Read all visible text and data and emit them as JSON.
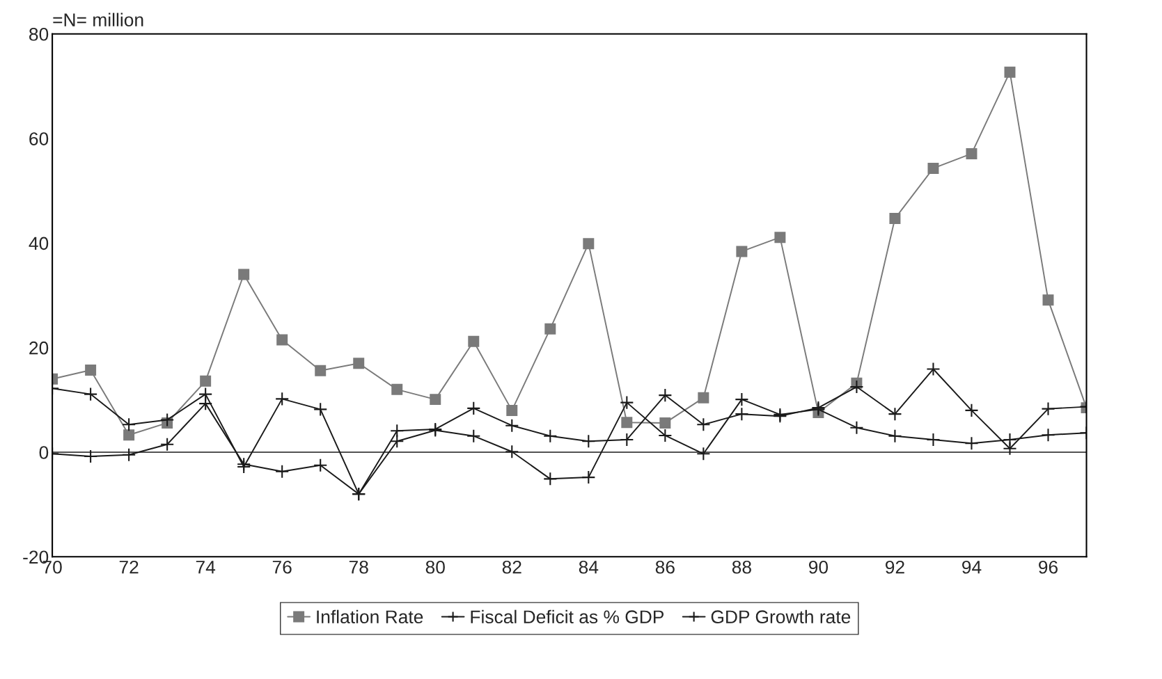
{
  "chart_data": {
    "type": "line",
    "title": "=N= million",
    "x": [
      70,
      71,
      72,
      73,
      74,
      75,
      76,
      77,
      78,
      79,
      80,
      81,
      82,
      83,
      84,
      85,
      86,
      87,
      88,
      89,
      90,
      91,
      92,
      93,
      94,
      95,
      96,
      97
    ],
    "series": [
      {
        "name": "Inflation Rate",
        "color": "#7a7a7a",
        "marker": "square",
        "values": [
          14.0,
          15.7,
          3.3,
          5.6,
          13.6,
          34.0,
          21.5,
          15.6,
          17.0,
          12.0,
          10.1,
          21.2,
          8.0,
          23.6,
          39.9,
          5.7,
          5.6,
          10.4,
          38.4,
          41.1,
          7.6,
          13.2,
          44.7,
          54.3,
          57.1,
          72.7,
          29.1,
          8.5
        ]
      },
      {
        "name": "Fiscal Deficit as % GDP",
        "color": "#1a1a1a",
        "marker": "cross",
        "values": [
          -0.3,
          -0.8,
          -0.5,
          1.5,
          9.3,
          -2.3,
          -3.7,
          -2.5,
          -8.0,
          4.1,
          4.4,
          8.4,
          5.1,
          3.1,
          2.1,
          2.4,
          10.9,
          5.3,
          7.3,
          6.9,
          8.5,
          12.5,
          7.3,
          15.9,
          8.0,
          0.7,
          8.3,
          8.7
        ]
      },
      {
        "name": "GDP Growth rate",
        "color": "#1a1a1a",
        "marker": "cross",
        "values": [
          12.2,
          11.1,
          5.3,
          6.2,
          11.1,
          -2.8,
          10.2,
          8.2,
          -8.0,
          2.1,
          4.2,
          3.1,
          0.1,
          -5.1,
          -4.8,
          9.5,
          3.2,
          -0.3,
          10.1,
          7.2,
          8.2,
          4.7,
          3.1,
          2.4,
          1.7,
          2.4,
          3.3,
          3.7
        ]
      }
    ],
    "xlim": [
      70,
      97
    ],
    "xticks": [
      70,
      72,
      74,
      76,
      78,
      80,
      82,
      84,
      86,
      88,
      90,
      92,
      94,
      96
    ],
    "ylim": [
      -20,
      80
    ],
    "yticks": [
      -20,
      0,
      20,
      40,
      60,
      80
    ],
    "ref_lines": [
      {
        "axis": "y",
        "value": 0,
        "color": "#1a1a1a"
      }
    ],
    "grid": false,
    "legend": "bottom",
    "line_style": "solid"
  }
}
